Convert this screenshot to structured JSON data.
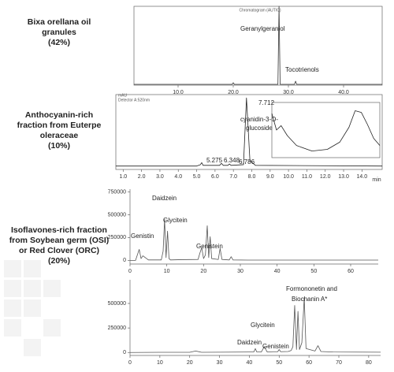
{
  "chart_data": [
    {
      "type": "line",
      "title": [
        "Bixa orellana oil",
        "granules",
        "(42%)"
      ],
      "header": "Chromatogram (AUTIC)",
      "x": [
        2,
        15,
        19.8,
        20,
        20.2,
        28.1,
        28.3,
        28.5,
        31.1,
        31.3,
        31.5,
        47
      ],
      "values": [
        1,
        1,
        1,
        3,
        1,
        1,
        100,
        1,
        1,
        5,
        1,
        1
      ],
      "xlim": [
        2,
        47
      ],
      "ylim": [
        0,
        100
      ],
      "xticks": [
        {
          "value": 10,
          "label": "10.0"
        },
        {
          "value": 20,
          "label": "20.0"
        },
        {
          "value": 30,
          "label": "30.0"
        },
        {
          "value": 40,
          "label": "40.0"
        }
      ],
      "annotations": [
        "Geranylgeraniol",
        "Tocotrienols"
      ],
      "color": "#333333"
    },
    {
      "type": "line",
      "title": [
        "Anthocyanin-rich",
        "fraction from Euterpe",
        "oleraceae",
        "(10%)"
      ],
      "header": "Detector A:520nm",
      "ylabel": "mAU",
      "xlabel": "min",
      "x": [
        0.6,
        5.0,
        5.2,
        5.275,
        5.35,
        6.25,
        6.348,
        6.45,
        6.7,
        6.786,
        6.87,
        7.55,
        7.712,
        7.9,
        8.2,
        15.1
      ],
      "values": [
        0,
        0,
        2,
        5,
        1,
        1,
        4,
        1,
        1,
        3,
        1,
        2,
        100,
        8,
        1,
        0
      ],
      "xlim": [
        0.6,
        15.1
      ],
      "ylim": [
        -5,
        105
      ],
      "xticks": [
        {
          "value": 1,
          "label": "1.0"
        },
        {
          "value": 2,
          "label": "2.0"
        },
        {
          "value": 3,
          "label": "3.0"
        },
        {
          "value": 4,
          "label": "4.0"
        },
        {
          "value": 5,
          "label": "5.0"
        },
        {
          "value": 6,
          "label": "6.0"
        },
        {
          "value": 7,
          "label": "7.0"
        },
        {
          "value": 8,
          "label": "8.0"
        },
        {
          "value": 9,
          "label": "9.0"
        },
        {
          "value": 10,
          "label": "10.0"
        },
        {
          "value": 11,
          "label": "11.0"
        },
        {
          "value": 12,
          "label": "12.0"
        },
        {
          "value": 13,
          "label": "13.0"
        },
        {
          "value": 14,
          "label": "14.0"
        }
      ],
      "annotations": [
        "cyanidin-3-O-",
        "glucoside",
        "7.712",
        "5.275",
        "6.348",
        "6.786"
      ],
      "color": "#222222"
    },
    {
      "type": "line",
      "x": [
        250,
        265,
        280,
        300,
        330,
        380,
        430,
        470,
        500,
        520,
        540,
        560,
        580,
        600
      ],
      "values": [
        80,
        50,
        58,
        40,
        22,
        12,
        15,
        28,
        55,
        85,
        82,
        60,
        35,
        22
      ],
      "xlim": [
        250,
        600
      ],
      "ylim": [
        0,
        100
      ],
      "color": "#222222"
    },
    {
      "type": "line",
      "title": [
        "Isoflavones-rich fraction",
        "from Soybean germ (OSI)",
        "or Red Clover (ORC)",
        "(20%)"
      ],
      "x": [
        0,
        1.5,
        2,
        2.5,
        3,
        3.5,
        5,
        8.5,
        9,
        9.4,
        9.8,
        10.2,
        10.6,
        11,
        14,
        18.5,
        19,
        19.5,
        20,
        20.5,
        21,
        21.4,
        21.8,
        22.2,
        24,
        24.5,
        25,
        27,
        27.5,
        28,
        32,
        67.5
      ],
      "values": [
        0,
        0,
        60000,
        120000,
        20000,
        50000,
        5000,
        5000,
        100000,
        450000,
        30000,
        320000,
        20000,
        5000,
        8000,
        10000,
        80000,
        140000,
        20000,
        60000,
        380000,
        30000,
        260000,
        20000,
        10000,
        130000,
        10000,
        5000,
        40000,
        5000,
        3000,
        3000
      ],
      "xlim": [
        0,
        67.5
      ],
      "ylim": [
        -40000,
        780000
      ],
      "xticks": [
        0,
        10,
        20,
        30,
        40,
        50,
        60
      ],
      "yticks": [
        0,
        250000,
        500000,
        750000
      ],
      "annotations": [
        "Daidzein",
        "Glycitein",
        "Genistin",
        "Genistein"
      ],
      "color": "#555555"
    },
    {
      "type": "line",
      "x": [
        0,
        10,
        20,
        22,
        24,
        30,
        40,
        41.5,
        42,
        42.5,
        44,
        45,
        46,
        48,
        49.5,
        50,
        50.5,
        53,
        54,
        54.6,
        55.2,
        55.8,
        56.3,
        56.8,
        57.6,
        58.4,
        59,
        62,
        63,
        64,
        68,
        84
      ],
      "values": [
        0,
        2000,
        2000,
        15000,
        2000,
        3000,
        5000,
        5000,
        40000,
        5000,
        5000,
        60000,
        5000,
        8000,
        8000,
        30000,
        8000,
        10000,
        20000,
        60000,
        480000,
        30000,
        420000,
        30000,
        100000,
        560000,
        40000,
        15000,
        70000,
        10000,
        5000,
        3000
      ],
      "xlim": [
        0,
        84
      ],
      "ylim": [
        -30000,
        741000
      ],
      "xticks": [
        0,
        10,
        20,
        30,
        40,
        50,
        60,
        70,
        80
      ],
      "yticks": [
        0,
        250000,
        500000
      ],
      "annotations": [
        "Formononetin and",
        "Biochanin A*",
        "Glycitein",
        "Daidzein",
        "Genistein"
      ],
      "color": "#555555"
    }
  ]
}
